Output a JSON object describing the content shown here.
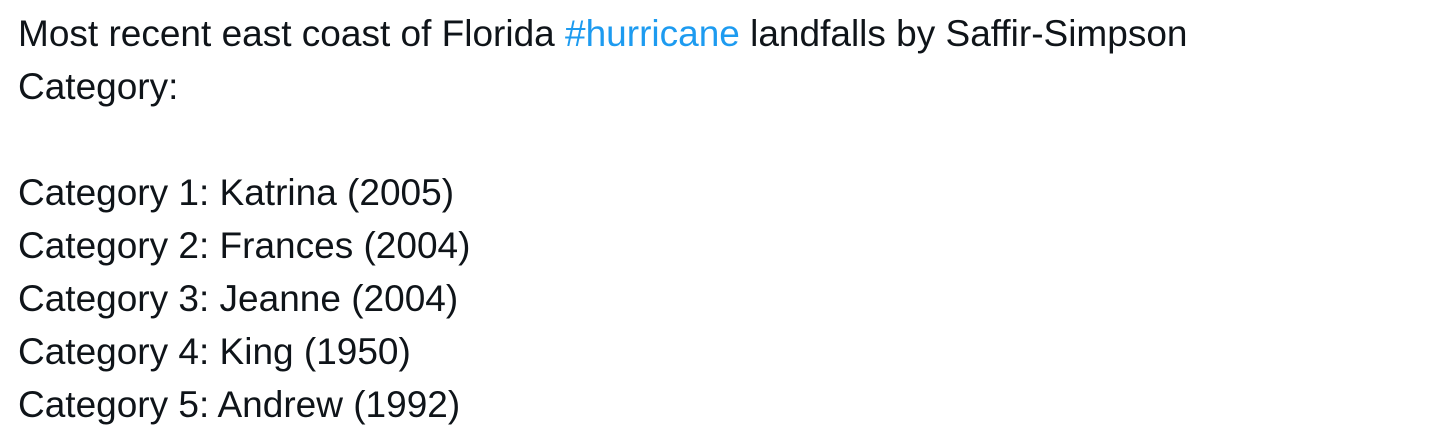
{
  "colors": {
    "background": "#ffffff",
    "text": "#0f1419",
    "link": "#1d9bf0"
  },
  "post": {
    "line1": {
      "before_hashtag": "Most recent east coast of Florida ",
      "hashtag": "#hurricane",
      "after_hashtag": " landfalls by Saffir-Simpson"
    },
    "line2": "Category:",
    "categories": [
      "Category 1: Katrina (2005)",
      "Category 2: Frances (2004)",
      "Category 3: Jeanne (2004)",
      "Category 4: King (1950)",
      "Category 5: Andrew (1992)"
    ]
  }
}
